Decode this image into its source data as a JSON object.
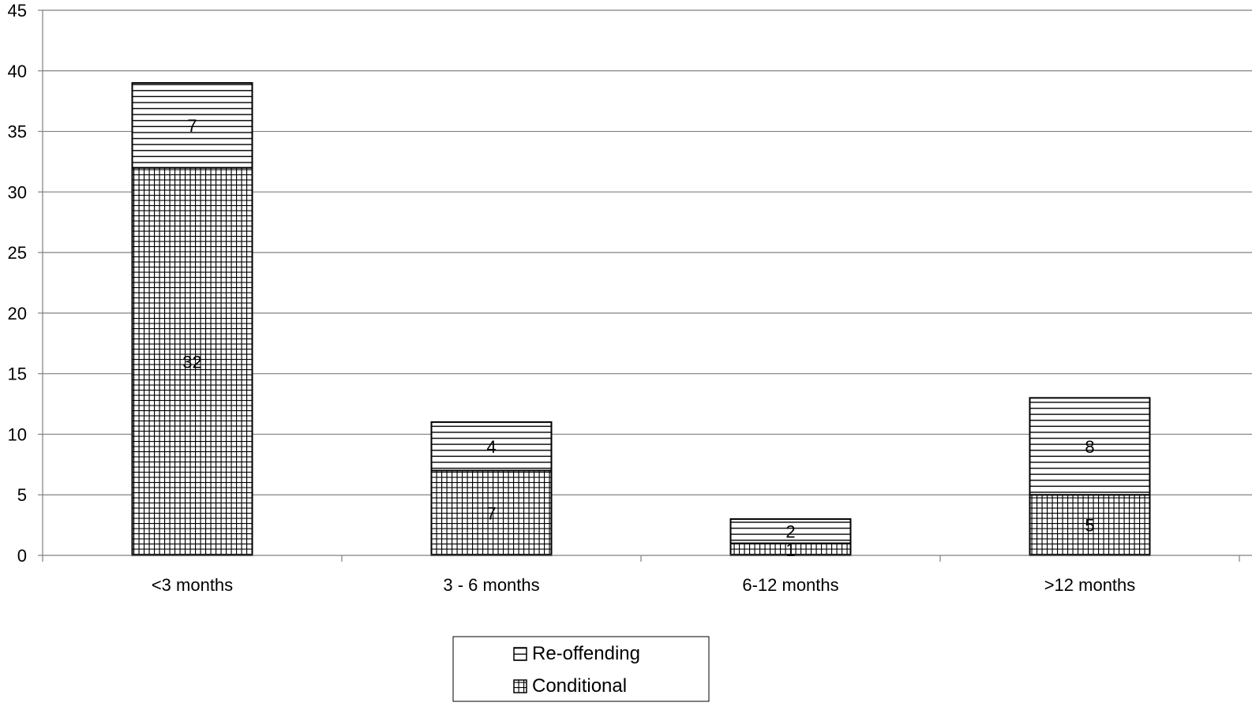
{
  "chart_data": {
    "type": "bar",
    "stacked": true,
    "categories": [
      "<3 months",
      "3 - 6 months",
      "6-12 months",
      ">12 months"
    ],
    "series": [
      {
        "name": "Conditional",
        "values": [
          32,
          7,
          1,
          5
        ],
        "pattern": "grid"
      },
      {
        "name": "Re-offending",
        "values": [
          7,
          4,
          2,
          8
        ],
        "pattern": "horizontal-lines"
      }
    ],
    "title": "",
    "xlabel": "",
    "ylabel": "",
    "ylim": [
      0,
      45
    ],
    "yticks": [
      0,
      5,
      10,
      15,
      20,
      25,
      30,
      35,
      40,
      45
    ],
    "grid": true,
    "legend": {
      "position": "bottom",
      "entries": [
        "Re-offending",
        "Conditional"
      ]
    },
    "colors": {
      "bars_fill": "#ffffff",
      "pattern_stroke": "#000000",
      "gridline": "#808080",
      "axis": "#808080"
    }
  }
}
